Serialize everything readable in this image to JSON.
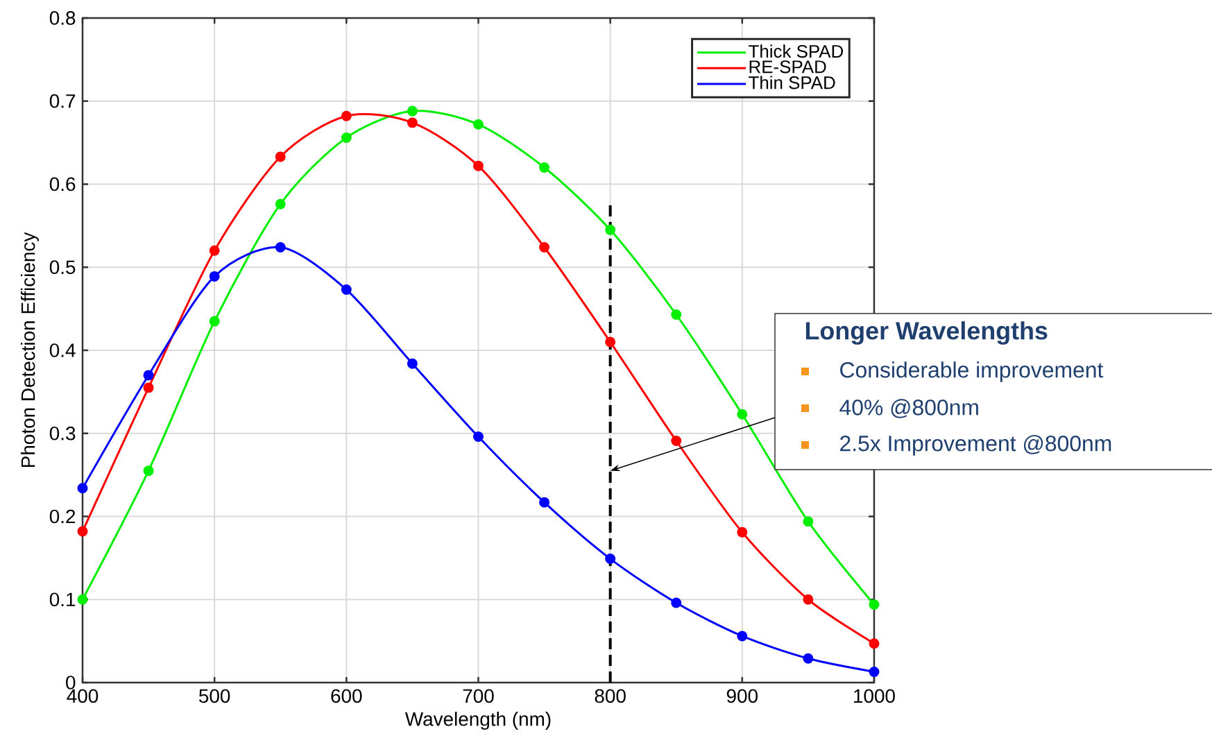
{
  "chart_data": {
    "type": "line",
    "xlabel": "Wavelength (nm)",
    "ylabel": "Photon Detection Efficiency",
    "x": [
      400,
      450,
      500,
      550,
      600,
      650,
      700,
      750,
      800,
      850,
      900,
      950,
      1000
    ],
    "series": [
      {
        "name": "Thick SPAD",
        "color": "#00ee00",
        "values": [
          0.1,
          0.255,
          0.435,
          0.576,
          0.656,
          0.688,
          0.672,
          0.62,
          0.545,
          0.443,
          0.323,
          0.194,
          0.094
        ]
      },
      {
        "name": "RE-SPAD",
        "color": "#ff0000",
        "values": [
          0.182,
          0.355,
          0.52,
          0.633,
          0.682,
          0.674,
          0.622,
          0.524,
          0.41,
          0.291,
          0.181,
          0.1,
          0.047
        ]
      },
      {
        "name": "Thin SPAD",
        "color": "#0000ff",
        "values": [
          0.234,
          0.37,
          0.489,
          0.524,
          0.473,
          0.384,
          0.296,
          0.217,
          0.149,
          0.096,
          0.056,
          0.029,
          0.013
        ]
      }
    ],
    "xlim": [
      400,
      1000
    ],
    "ylim": [
      0,
      0.8
    ],
    "xticks": [
      400,
      500,
      600,
      700,
      800,
      900,
      1000
    ],
    "yticks": [
      0,
      0.1,
      0.2,
      0.3,
      0.4,
      0.5,
      0.6,
      0.7,
      0.8
    ],
    "ref_lines": [
      {
        "axis": "x",
        "value": 800,
        "color": "#000000",
        "line_style": "dashed"
      }
    ],
    "annotations": [
      "Longer Wavelengths",
      "Considerable improvement",
      "40% @800nm",
      "2.5x Improvement @800nm"
    ],
    "grid": true,
    "legend": "top right",
    "marker": "circle",
    "line_style": "solid"
  }
}
